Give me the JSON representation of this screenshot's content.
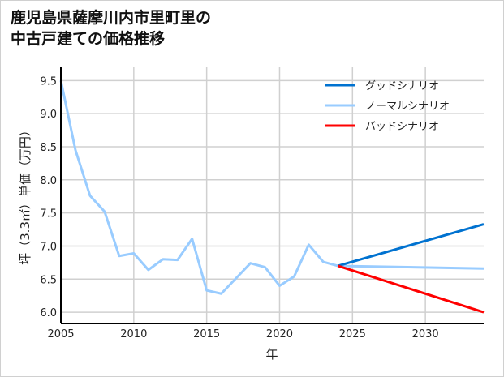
{
  "chart_data": {
    "type": "line",
    "title_line1": "鹿児島県薩摩川内市里町里の",
    "title_line2": "中古戸建ての価格推移",
    "xlabel": "年",
    "ylabel": "坪（3.3㎡）単価（万円）",
    "xlim": [
      2005,
      2034
    ],
    "ylim": [
      5.83,
      9.7
    ],
    "xticks": [
      2005,
      2010,
      2015,
      2020,
      2025,
      2030
    ],
    "yticks": [
      "6.0",
      "6.5",
      "7.0",
      "7.5",
      "8.0",
      "8.5",
      "9.0",
      "9.5"
    ],
    "grid": true,
    "legend_position": "top-right",
    "series": [
      {
        "name": "グッドシナリオ",
        "color": "#0072d0",
        "x": [
          2024,
          2034
        ],
        "y": [
          6.7,
          7.33
        ]
      },
      {
        "name": "ノーマルシナリオ",
        "color": "#99ccff",
        "x": [
          2005,
          2006,
          2007,
          2008,
          2009,
          2010,
          2011,
          2012,
          2013,
          2014,
          2015,
          2016,
          2017,
          2018,
          2019,
          2020,
          2021,
          2022,
          2023,
          2024,
          2034
        ],
        "y": [
          9.5,
          8.45,
          7.76,
          7.52,
          6.85,
          6.89,
          6.64,
          6.8,
          6.79,
          7.11,
          6.33,
          6.28,
          6.51,
          6.74,
          6.68,
          6.4,
          6.54,
          7.02,
          6.76,
          6.7,
          6.66
        ]
      },
      {
        "name": "バッドシナリオ",
        "color": "#ff0000",
        "x": [
          2024,
          2034
        ],
        "y": [
          6.7,
          6.0
        ]
      }
    ]
  }
}
